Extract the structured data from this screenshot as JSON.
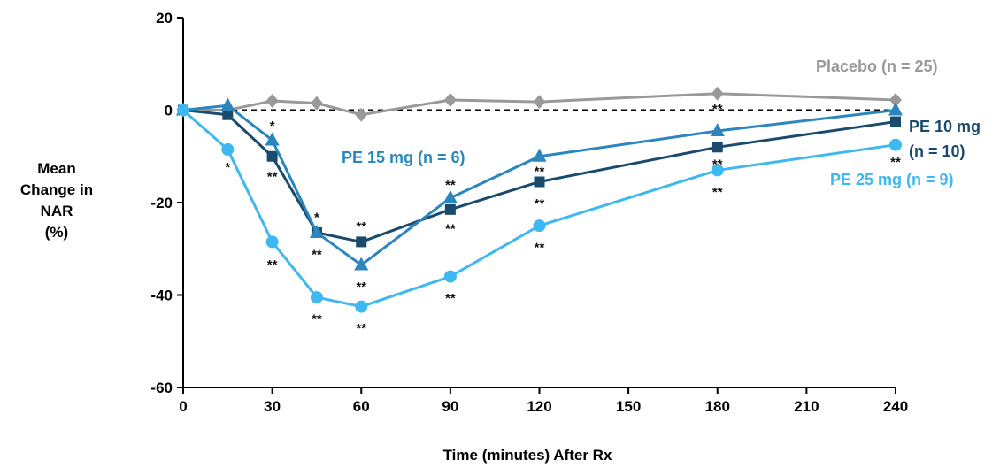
{
  "chart_data": {
    "type": "line",
    "title": "",
    "xlabel": "Time (minutes) After Rx",
    "ylabel_lines": [
      "Mean",
      "Change in",
      "NAR",
      "(%)"
    ],
    "xlim": [
      0,
      240
    ],
    "ylim": [
      -60,
      20
    ],
    "x_ticks": [
      "0",
      "30",
      "60",
      "90",
      "120",
      "150",
      "180",
      "210",
      "240"
    ],
    "y_ticks": [
      "20",
      "0",
      "-20",
      "-40",
      "-60"
    ],
    "reference_line": {
      "y": 0,
      "style": "dashed"
    },
    "grid": false,
    "series": [
      {
        "name": "Placebo (n = 25)",
        "color": "#999999",
        "marker": "diamond",
        "x": [
          0,
          15,
          30,
          45,
          60,
          90,
          120,
          180,
          240
        ],
        "y": [
          0,
          0,
          2,
          1.5,
          -1,
          2.2,
          1.8,
          3.6,
          2.2
        ]
      },
      {
        "name": "PE 10 mg (n = 10)",
        "name_lines": [
          "PE 10 mg",
          "(n = 10)"
        ],
        "color": "#1a4b6e",
        "marker": "square",
        "x": [
          0,
          15,
          30,
          45,
          60,
          90,
          120,
          180,
          240
        ],
        "y": [
          0,
          -1,
          -10,
          -26.5,
          -28.5,
          -21.5,
          -15.5,
          -8,
          -2.5
        ]
      },
      {
        "name": "PE 15 mg (n = 6)",
        "color": "#2a86bd",
        "marker": "triangle",
        "x": [
          0,
          15,
          30,
          45,
          60,
          90,
          120,
          180,
          240
        ],
        "y": [
          0,
          1,
          -6.5,
          -26.5,
          -33.5,
          -19,
          -10,
          -4.5,
          0
        ]
      },
      {
        "name": "PE 25 mg (n = 9)",
        "color": "#3db8f0",
        "marker": "circle",
        "x": [
          0,
          15,
          30,
          45,
          60,
          90,
          120,
          180,
          240
        ],
        "y": [
          0,
          -8.5,
          -28.5,
          -40.5,
          -42.5,
          -36,
          -25,
          -13,
          -7.5
        ]
      }
    ],
    "annotations": [
      {
        "text": "*",
        "x": 30,
        "y": -3.2
      },
      {
        "text": "*",
        "x": 15,
        "y": -12.2
      },
      {
        "text": "**",
        "x": 30,
        "y": -14.2
      },
      {
        "text": "**",
        "x": 30,
        "y": -33.2
      },
      {
        "text": "*",
        "x": 45,
        "y": -23
      },
      {
        "text": "**",
        "x": 45,
        "y": -31
      },
      {
        "text": "**",
        "x": 45,
        "y": -45
      },
      {
        "text": "**",
        "x": 60,
        "y": -25
      },
      {
        "text": "**",
        "x": 60,
        "y": -38
      },
      {
        "text": "**",
        "x": 60,
        "y": -47
      },
      {
        "text": "**",
        "x": 90,
        "y": -16
      },
      {
        "text": "**",
        "x": 90,
        "y": -25.5
      },
      {
        "text": "**",
        "x": 90,
        "y": -40.5
      },
      {
        "text": "**",
        "x": 120,
        "y": -13
      },
      {
        "text": "**",
        "x": 120,
        "y": -20
      },
      {
        "text": "**",
        "x": 120,
        "y": -29.5
      },
      {
        "text": "**",
        "x": 180,
        "y": 0.5
      },
      {
        "text": "**",
        "x": 180,
        "y": -11.5
      },
      {
        "text": "**",
        "x": 180,
        "y": -17.5
      },
      {
        "text": "**",
        "x": 240,
        "y": -11
      }
    ]
  }
}
